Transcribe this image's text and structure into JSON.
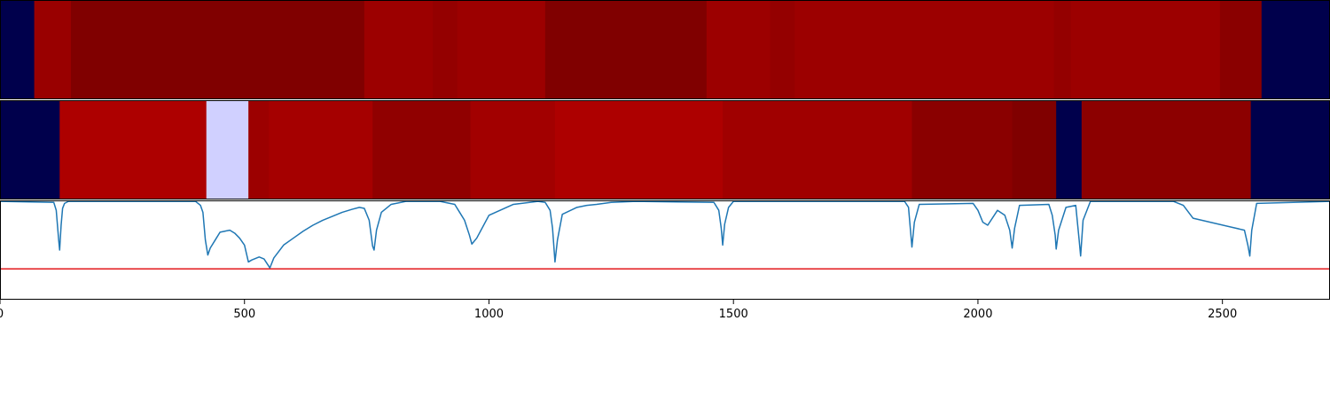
{
  "chart_data": [
    {
      "type": "heatmap",
      "x_range": [
        0,
        2720
      ],
      "segments": [
        {
          "x0": 0,
          "x1": 70,
          "color": "#00004c"
        },
        {
          "x0": 70,
          "x1": 145,
          "color": "#990000"
        },
        {
          "x0": 145,
          "x1": 745,
          "color": "#800000"
        },
        {
          "x0": 745,
          "x1": 885,
          "color": "#9c0000"
        },
        {
          "x0": 885,
          "x1": 935,
          "color": "#940000"
        },
        {
          "x0": 935,
          "x1": 1115,
          "color": "#9c0000"
        },
        {
          "x0": 1115,
          "x1": 1445,
          "color": "#800000"
        },
        {
          "x0": 1445,
          "x1": 1575,
          "color": "#9c0000"
        },
        {
          "x0": 1575,
          "x1": 1625,
          "color": "#940000"
        },
        {
          "x0": 1625,
          "x1": 2155,
          "color": "#9c0000"
        },
        {
          "x0": 2155,
          "x1": 2190,
          "color": "#940000"
        },
        {
          "x0": 2190,
          "x1": 2495,
          "color": "#9c0000"
        },
        {
          "x0": 2495,
          "x1": 2580,
          "color": "#8a0000"
        },
        {
          "x0": 2580,
          "x1": 2720,
          "color": "#00004c"
        }
      ]
    },
    {
      "type": "heatmap",
      "x_range": [
        0,
        2720
      ],
      "segments": [
        {
          "x0": 0,
          "x1": 122,
          "color": "#00004c"
        },
        {
          "x0": 122,
          "x1": 422,
          "color": "#ad0000"
        },
        {
          "x0": 422,
          "x1": 508,
          "color": "#d0d0ff"
        },
        {
          "x0": 508,
          "x1": 550,
          "color": "#9c0000"
        },
        {
          "x0": 550,
          "x1": 762,
          "color": "#a50000"
        },
        {
          "x0": 762,
          "x1": 962,
          "color": "#900000"
        },
        {
          "x0": 962,
          "x1": 1135,
          "color": "#a20000"
        },
        {
          "x0": 1135,
          "x1": 1478,
          "color": "#ad0000"
        },
        {
          "x0": 1478,
          "x1": 1865,
          "color": "#a00000"
        },
        {
          "x0": 1865,
          "x1": 2070,
          "color": "#8a0000"
        },
        {
          "x0": 2070,
          "x1": 2160,
          "color": "#800000"
        },
        {
          "x0": 2160,
          "x1": 2212,
          "color": "#00004c"
        },
        {
          "x0": 2212,
          "x1": 2558,
          "color": "#8c0000"
        },
        {
          "x0": 2558,
          "x1": 2720,
          "color": "#00004c"
        }
      ]
    },
    {
      "type": "line",
      "x_range": [
        0,
        2720
      ],
      "y_range": [
        0,
        1
      ],
      "threshold": 0.31,
      "threshold_color": "#e31a1c",
      "series_color": "#1f77b4",
      "xticks": [
        0,
        500,
        1000,
        1500,
        2000,
        2500
      ],
      "xtick_labels": [
        "0",
        "500",
        "1000",
        "1500",
        "2000",
        "2500"
      ],
      "series": [
        {
          "x": [
            0,
            110,
            115,
            120,
            122,
            125,
            128,
            132,
            140,
            400,
            410,
            415,
            420,
            425,
            430,
            440,
            450,
            460,
            470,
            480,
            490,
            500,
            508,
            515,
            530,
            540,
            548,
            552,
            560,
            580,
            600,
            620,
            640,
            660,
            680,
            700,
            720,
            735,
            745,
            755,
            762,
            765,
            770,
            780,
            800,
            830,
            900,
            930,
            940,
            950,
            960,
            965,
            975,
            1000,
            1050,
            1100,
            1115,
            1125,
            1130,
            1135,
            1140,
            1150,
            1180,
            1200,
            1220,
            1250,
            1300,
            1460,
            1470,
            1475,
            1478,
            1482,
            1490,
            1500,
            1850,
            1858,
            1862,
            1865,
            1870,
            1880,
            1990,
            2000,
            2010,
            2020,
            2040,
            2055,
            2065,
            2070,
            2075,
            2085,
            2145,
            2152,
            2158,
            2160,
            2165,
            2180,
            2200,
            2207,
            2210,
            2215,
            2230,
            2400,
            2420,
            2440,
            2545,
            2552,
            2556,
            2560,
            2570,
            2720
          ],
          "y": [
            0.99,
            0.98,
            0.9,
            0.6,
            0.5,
            0.75,
            0.92,
            0.97,
            0.99,
            0.99,
            0.95,
            0.88,
            0.6,
            0.45,
            0.52,
            0.6,
            0.68,
            0.69,
            0.7,
            0.67,
            0.62,
            0.55,
            0.38,
            0.4,
            0.43,
            0.41,
            0.35,
            0.32,
            0.42,
            0.55,
            0.62,
            0.69,
            0.75,
            0.8,
            0.84,
            0.88,
            0.91,
            0.93,
            0.92,
            0.8,
            0.54,
            0.5,
            0.7,
            0.88,
            0.96,
            0.99,
            0.99,
            0.96,
            0.88,
            0.8,
            0.65,
            0.56,
            0.62,
            0.85,
            0.96,
            0.99,
            0.98,
            0.9,
            0.72,
            0.38,
            0.6,
            0.86,
            0.93,
            0.95,
            0.96,
            0.98,
            0.99,
            0.98,
            0.9,
            0.72,
            0.55,
            0.76,
            0.93,
            0.99,
            0.99,
            0.93,
            0.7,
            0.53,
            0.78,
            0.96,
            0.97,
            0.9,
            0.78,
            0.75,
            0.9,
            0.85,
            0.7,
            0.52,
            0.72,
            0.95,
            0.96,
            0.85,
            0.65,
            0.51,
            0.7,
            0.93,
            0.95,
            0.6,
            0.44,
            0.8,
            0.99,
            0.99,
            0.95,
            0.82,
            0.7,
            0.55,
            0.44,
            0.7,
            0.97,
            0.99
          ]
        }
      ]
    }
  ]
}
